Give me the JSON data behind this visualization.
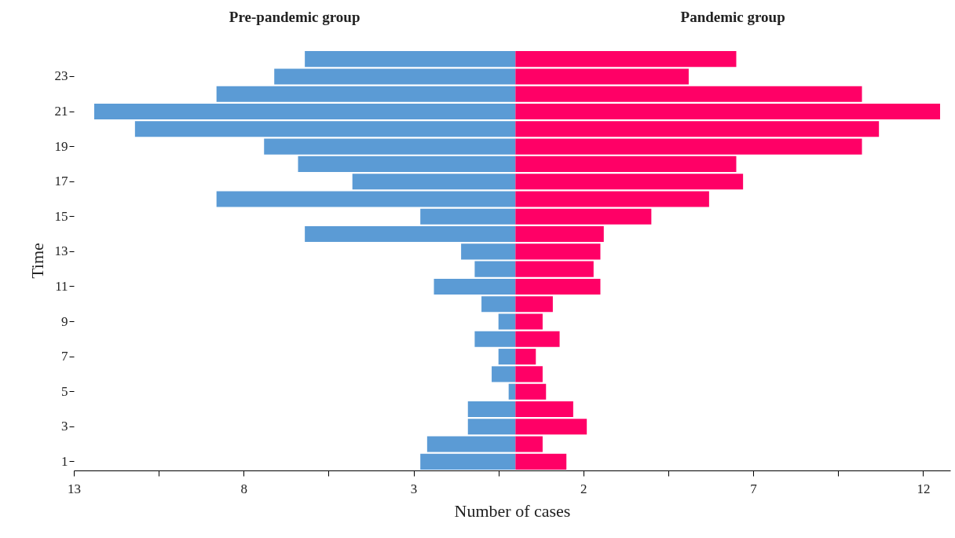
{
  "chart_data": {
    "type": "bar",
    "orientation": "horizontal",
    "xlabel": "Number of cases",
    "ylabel": "Time",
    "categories": [
      null,
      "23",
      null,
      "21",
      null,
      "19",
      null,
      "17",
      null,
      "15",
      null,
      "13",
      null,
      "11",
      null,
      "9",
      null,
      "7",
      null,
      "5",
      null,
      "3",
      null,
      "1"
    ],
    "series": [
      {
        "name": "Pre-pandemic group",
        "color": "#5b9bd5",
        "values": [
          -6.2,
          -7.1,
          -8.8,
          -12.4,
          -11.2,
          -7.4,
          -6.4,
          -4.8,
          -8.8,
          -2.8,
          -6.2,
          -1.6,
          -1.2,
          -2.4,
          -1.0,
          -0.5,
          -1.2,
          -0.5,
          -0.7,
          -0.2,
          -1.4,
          -1.4,
          -2.6,
          -2.8
        ]
      },
      {
        "name": "Pandemic group",
        "color": "#ff0066",
        "values": [
          6.5,
          5.1,
          10.2,
          12.5,
          10.7,
          10.2,
          6.5,
          6.7,
          5.7,
          4.0,
          2.6,
          2.5,
          2.3,
          2.5,
          1.1,
          0.8,
          1.3,
          0.6,
          0.8,
          0.9,
          1.7,
          2.1,
          0.8,
          1.5
        ]
      }
    ],
    "xlim": [
      -13,
      12.8
    ],
    "xticks": [
      {
        "value": -13,
        "label": "13"
      },
      {
        "value": -10.5,
        "label": null
      },
      {
        "value": -8,
        "label": "8"
      },
      {
        "value": -5.5,
        "label": null
      },
      {
        "value": -3,
        "label": "3"
      },
      {
        "value": -0.5,
        "label": null
      },
      2,
      {
        "value": 4.5,
        "label": null
      },
      7,
      {
        "value": 9.5,
        "label": null
      },
      12
    ],
    "stacked": true,
    "legend": false,
    "grid": false
  }
}
